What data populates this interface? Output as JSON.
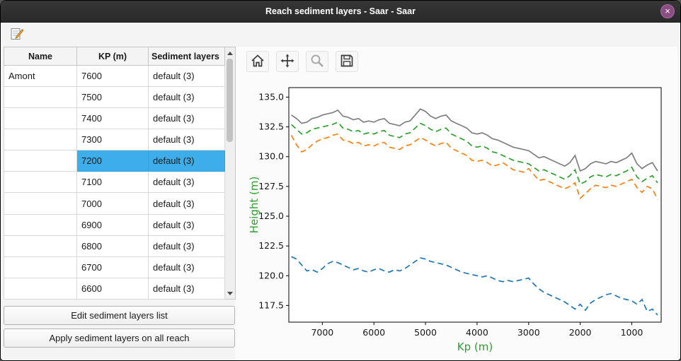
{
  "window": {
    "title": "Reach sediment layers - Saar - Saar",
    "close_glyph": "×"
  },
  "app_toolbar": {
    "edit_icon": "edit-sediment-layers-icon"
  },
  "table": {
    "headers": [
      "Name",
      "KP (m)",
      "Sediment layers"
    ],
    "rows": [
      {
        "name": "Amont",
        "kp": "7600",
        "layers": "default (3)",
        "selected": false
      },
      {
        "name": "",
        "kp": "7500",
        "layers": "default (3)",
        "selected": false
      },
      {
        "name": "",
        "kp": "7400",
        "layers": "default (3)",
        "selected": false
      },
      {
        "name": "",
        "kp": "7300",
        "layers": "default (3)",
        "selected": false
      },
      {
        "name": "",
        "kp": "7200",
        "layers": "default (3)",
        "selected": true
      },
      {
        "name": "",
        "kp": "7100",
        "layers": "default (3)",
        "selected": false
      },
      {
        "name": "",
        "kp": "7000",
        "layers": "default (3)",
        "selected": false
      },
      {
        "name": "",
        "kp": "6900",
        "layers": "default (3)",
        "selected": false
      },
      {
        "name": "",
        "kp": "6800",
        "layers": "default (3)",
        "selected": false
      },
      {
        "name": "",
        "kp": "6700",
        "layers": "default (3)",
        "selected": false
      },
      {
        "name": "",
        "kp": "6600",
        "layers": "default (3)",
        "selected": false
      }
    ]
  },
  "buttons": {
    "edit": "Edit sediment layers list",
    "apply": "Apply sediment layers on all reach"
  },
  "plot_toolbar": {
    "tools": [
      "home",
      "pan",
      "zoom",
      "save"
    ]
  },
  "chart_data": {
    "type": "line",
    "title": "",
    "xlabel": "Kp (m)",
    "ylabel": "Height (m)",
    "axis_label_color": "#2ca02c",
    "x_ticks": [
      7000,
      6000,
      5000,
      4000,
      3000,
      2000,
      1000
    ],
    "y_ticks": [
      117.5,
      120.0,
      122.5,
      125.0,
      127.5,
      130.0,
      132.5,
      135.0
    ],
    "xlim": [
      7650,
      430
    ],
    "ylim": [
      116.1,
      135.8
    ],
    "x_axis_reversed": true,
    "legend": "none",
    "grid": false,
    "x": [
      7600,
      7500,
      7400,
      7300,
      7200,
      7100,
      7000,
      6900,
      6800,
      6700,
      6600,
      6500,
      6400,
      6300,
      6200,
      6100,
      6000,
      5900,
      5800,
      5700,
      5600,
      5500,
      5400,
      5300,
      5200,
      5100,
      5000,
      4900,
      4800,
      4700,
      4600,
      4500,
      4400,
      4300,
      4200,
      4100,
      4000,
      3900,
      3800,
      3700,
      3600,
      3500,
      3400,
      3300,
      3200,
      3100,
      3000,
      2900,
      2800,
      2700,
      2600,
      2500,
      2400,
      2300,
      2200,
      2100,
      2000,
      1900,
      1800,
      1700,
      1600,
      1500,
      1400,
      1300,
      1200,
      1100,
      1000,
      900,
      800,
      700,
      600,
      500
    ],
    "series": [
      {
        "name": "top-line-gray",
        "color": "#7f7f7f",
        "style": "solid",
        "values": [
          133.5,
          133.2,
          132.8,
          132.9,
          133.2,
          133.3,
          133.5,
          133.6,
          133.7,
          133.9,
          133.4,
          133.3,
          133.1,
          133.2,
          132.9,
          133.0,
          132.9,
          133.1,
          133.2,
          132.8,
          132.7,
          132.6,
          132.9,
          133.0,
          133.5,
          134.0,
          133.8,
          133.4,
          133.2,
          133.4,
          133.5,
          133.0,
          132.8,
          132.6,
          132.4,
          132.0,
          131.9,
          132.0,
          131.8,
          131.5,
          131.4,
          131.2,
          131.0,
          130.8,
          130.7,
          130.6,
          130.5,
          130.2,
          129.9,
          130.0,
          129.8,
          129.6,
          129.4,
          129.2,
          129.5,
          130.1,
          128.8,
          129.0,
          129.4,
          129.6,
          129.5,
          129.4,
          129.6,
          129.5,
          129.7,
          129.9,
          130.3,
          129.4,
          129.0,
          129.3,
          129.5,
          128.8
        ]
      },
      {
        "name": "layer-line-green",
        "color": "#2ca02c",
        "style": "dashed",
        "values": [
          132.7,
          132.3,
          131.9,
          132.0,
          132.3,
          132.4,
          132.5,
          132.6,
          132.7,
          132.9,
          132.4,
          132.3,
          132.1,
          132.2,
          131.9,
          132.0,
          131.9,
          132.1,
          132.2,
          131.8,
          131.7,
          131.6,
          131.9,
          132.0,
          132.4,
          132.8,
          132.6,
          132.3,
          132.1,
          132.3,
          132.4,
          131.9,
          131.7,
          131.5,
          131.3,
          130.9,
          130.8,
          130.9,
          130.7,
          130.4,
          130.3,
          130.1,
          129.9,
          129.7,
          129.6,
          129.5,
          129.4,
          129.1,
          128.8,
          128.9,
          128.7,
          128.5,
          128.3,
          128.1,
          128.4,
          128.9,
          127.7,
          127.9,
          128.3,
          128.5,
          128.4,
          128.3,
          128.5,
          128.4,
          128.6,
          128.8,
          129.1,
          128.3,
          127.9,
          128.2,
          128.4,
          127.8
        ]
      },
      {
        "name": "layer-line-orange",
        "color": "#ff7f0e",
        "style": "dashed",
        "values": [
          131.8,
          131.0,
          130.4,
          130.6,
          131.0,
          131.3,
          131.5,
          131.6,
          131.8,
          131.9,
          131.4,
          131.3,
          131.1,
          131.2,
          130.9,
          131.0,
          130.9,
          131.1,
          131.2,
          130.8,
          130.7,
          130.6,
          130.9,
          131.0,
          131.3,
          131.6,
          131.4,
          131.1,
          130.9,
          131.1,
          131.2,
          130.7,
          130.5,
          130.3,
          130.1,
          129.7,
          129.6,
          129.7,
          129.5,
          129.2,
          129.3,
          129.5,
          129.2,
          128.9,
          128.8,
          128.7,
          129.0,
          128.5,
          128.0,
          128.1,
          127.9,
          127.7,
          127.5,
          127.3,
          127.5,
          127.8,
          126.5,
          126.9,
          127.3,
          127.6,
          127.5,
          127.4,
          127.6,
          127.5,
          127.7,
          127.9,
          128.1,
          127.4,
          127.0,
          127.5,
          127.3,
          126.4
        ]
      },
      {
        "name": "bottom-line-blue",
        "color": "#1f77b4",
        "style": "dashed",
        "values": [
          121.6,
          121.4,
          120.9,
          120.4,
          120.5,
          120.3,
          120.6,
          121.0,
          121.2,
          121.1,
          120.9,
          120.7,
          120.5,
          120.6,
          120.4,
          120.3,
          120.5,
          120.6,
          120.4,
          120.3,
          120.5,
          120.4,
          120.6,
          120.9,
          121.2,
          121.5,
          121.4,
          121.2,
          121.1,
          121.0,
          120.9,
          120.7,
          120.5,
          120.3,
          120.2,
          120.1,
          120.0,
          119.9,
          120.0,
          119.8,
          119.6,
          119.5,
          119.6,
          119.5,
          119.6,
          119.7,
          119.8,
          119.3,
          118.9,
          118.6,
          118.4,
          118.2,
          118.0,
          117.8,
          117.5,
          117.2,
          117.6,
          117.1,
          117.7,
          118.0,
          118.2,
          118.4,
          118.5,
          118.3,
          118.1,
          118.0,
          117.9,
          117.6,
          118.0,
          117.0,
          117.2,
          116.7
        ]
      }
    ]
  }
}
